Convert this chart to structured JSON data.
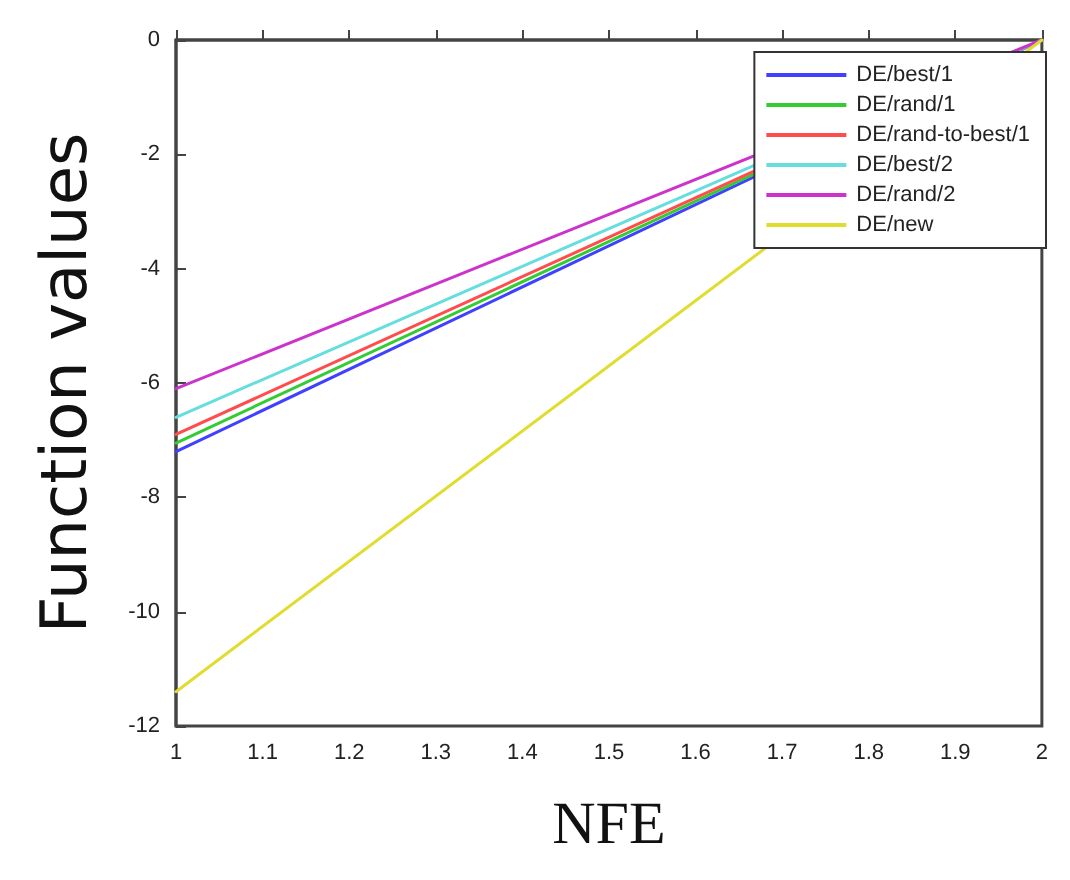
{
  "chart_data": {
    "type": "line",
    "xlabel": "NFE",
    "ylabel": "Function values",
    "x": [
      1,
      2
    ],
    "series": [
      {
        "name": "DE/best/1",
        "color": "#4040ff",
        "values": [
          -7.2,
          0
        ]
      },
      {
        "name": "DE/rand/1",
        "color": "#33cc33",
        "values": [
          -7.05,
          0
        ]
      },
      {
        "name": "DE/rand-to-best/1",
        "color": "#ff4d4d",
        "values": [
          -6.9,
          0
        ]
      },
      {
        "name": "DE/best/2",
        "color": "#66dede",
        "values": [
          -6.6,
          0
        ]
      },
      {
        "name": "DE/rand/2",
        "color": "#cc33cc",
        "values": [
          -6.1,
          0
        ]
      },
      {
        "name": "DE/new",
        "color": "#e0dc30",
        "values": [
          -11.4,
          0
        ]
      }
    ],
    "xlim": [
      1,
      2
    ],
    "ylim": [
      -12,
      0
    ],
    "xticks": [
      1,
      1.1,
      1.2,
      1.3,
      1.4,
      1.5,
      1.6,
      1.7,
      1.8,
      1.9,
      2
    ],
    "yticks": [
      -12,
      -10,
      -8,
      -6,
      -4,
      -2,
      0
    ],
    "grid": false,
    "legend": "top right",
    "marker": "none",
    "line_style": "solid"
  }
}
